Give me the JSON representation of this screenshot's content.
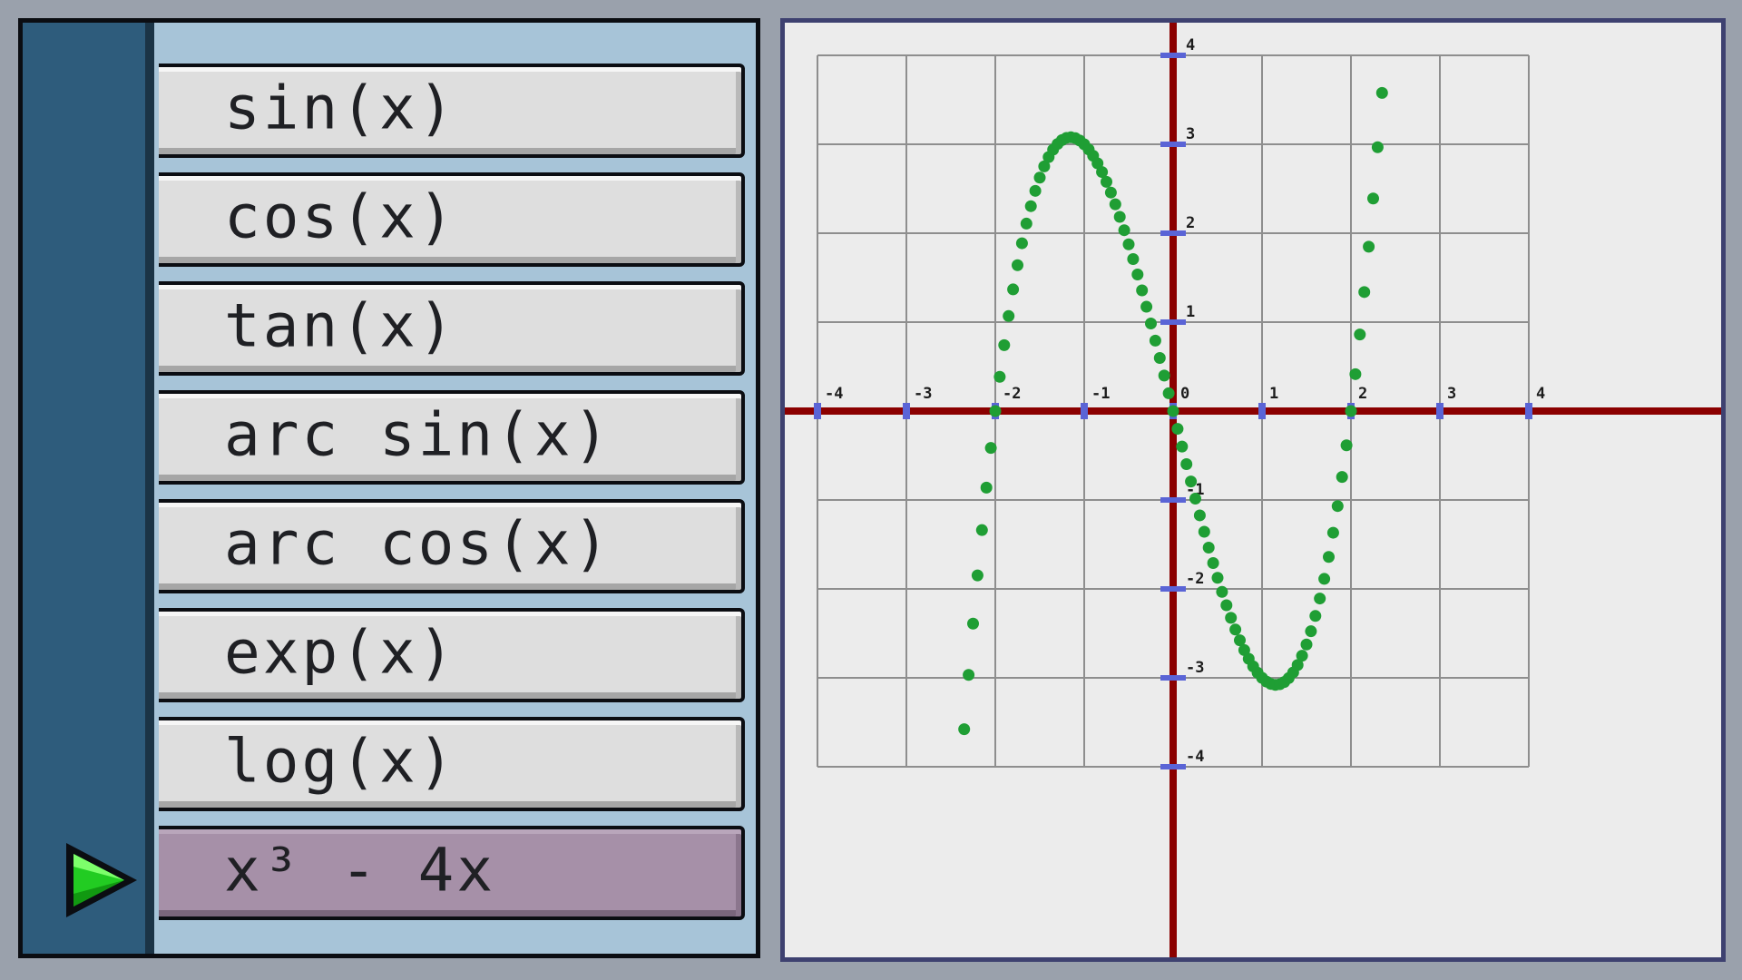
{
  "menu": {
    "items": [
      {
        "label": "sin(x)",
        "selected": false
      },
      {
        "label": "cos(x)",
        "selected": false
      },
      {
        "label": "tan(x)",
        "selected": false
      },
      {
        "label": "arc sin(x)",
        "selected": false
      },
      {
        "label": "arc cos(x)",
        "selected": false
      },
      {
        "label": "exp(x)",
        "selected": false
      },
      {
        "label": "log(x)",
        "selected": false
      },
      {
        "label": "x³ - 4x",
        "selected": true
      }
    ],
    "selector_icon": "green-triangle-arrow-icon"
  },
  "colors": {
    "menu_rail": "#2e5c7c",
    "menu_bg": "#a7c4d8",
    "button": "#dedede",
    "button_selected": "#a690a8",
    "arrow": "#22cc22",
    "grid": "#8e8e8e",
    "axis": "#8b0000",
    "tick_marker": "#5a64d6",
    "plot_points": "#1f9e34"
  },
  "chart_data": {
    "type": "scatter",
    "function": "x³ - 4x",
    "xlim": [
      -4,
      4
    ],
    "ylim": [
      -4,
      4
    ],
    "grid": true,
    "x_ticks": [
      "-4",
      "-3",
      "-2",
      "-1",
      "0",
      "1",
      "2",
      "3",
      "4"
    ],
    "y_ticks": [
      "4",
      "3",
      "2",
      "1",
      "-1",
      "-2",
      "-3",
      "-4"
    ],
    "x_range_plotted": [
      -2.4,
      2.35
    ],
    "point_count": 96
  }
}
